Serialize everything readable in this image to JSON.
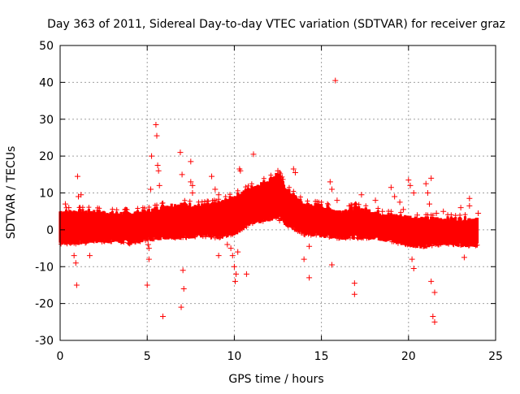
{
  "chart_data": {
    "type": "scatter",
    "title": "Day 363 of 2011, Sidereal Day-to-day VTEC variation (SDTVAR) for receiver graz",
    "xlabel": "GPS time / hours",
    "ylabel": "SDTVAR / TECUs",
    "xlim": [
      0,
      25
    ],
    "ylim": [
      -30,
      50
    ],
    "xticks": [
      0,
      5,
      10,
      15,
      20,
      25
    ],
    "xtick_labels": [
      "0",
      "5",
      "10",
      "15",
      "20",
      "25"
    ],
    "yticks": [
      -30,
      -20,
      -10,
      0,
      10,
      20,
      30,
      40,
      50
    ],
    "ytick_labels": [
      "-30",
      "-20",
      "-10",
      "0",
      "10",
      "20",
      "30",
      "40",
      "50"
    ],
    "grid": true,
    "marker": "+",
    "series": [
      {
        "name": "SDTVAR",
        "color": "#ff0000",
        "band": {
          "description": "dense cloud of measurements: t, center, lower spread, upper spread (TECU)",
          "t": [
            0.0,
            1.0,
            2.0,
            3.0,
            4.0,
            5.0,
            6.0,
            7.0,
            8.0,
            9.0,
            10.0,
            11.0,
            12.0,
            12.5,
            13.0,
            14.0,
            15.0,
            16.0,
            17.0,
            18.0,
            19.0,
            20.0,
            21.0,
            22.0,
            23.0,
            24.0
          ],
          "center": [
            0.5,
            0.5,
            1.0,
            0.5,
            0.5,
            1.0,
            2.0,
            2.5,
            2.0,
            2.5,
            4.0,
            7.0,
            8.5,
            9.0,
            6.5,
            3.0,
            2.5,
            1.5,
            2.0,
            1.5,
            0.5,
            0.0,
            -0.5,
            0.0,
            0.0,
            0.0
          ],
          "lo": [
            -3.5,
            -3.5,
            -3.0,
            -3.0,
            -3.5,
            -2.5,
            -2.0,
            -2.0,
            -1.5,
            -2.0,
            -1.0,
            2.0,
            3.0,
            3.5,
            1.5,
            -1.0,
            -1.5,
            -2.0,
            -2.0,
            -2.0,
            -3.0,
            -4.0,
            -4.5,
            -3.5,
            -4.0,
            -4.0
          ],
          "hi": [
            5.0,
            5.0,
            5.0,
            4.5,
            4.5,
            5.0,
            6.5,
            7.0,
            6.5,
            7.0,
            9.0,
            11.5,
            13.5,
            15.5,
            11.0,
            7.0,
            6.5,
            5.0,
            6.0,
            5.0,
            4.0,
            3.5,
            3.0,
            3.0,
            3.0,
            3.0
          ]
        },
        "points": [
          [
            0.1,
            2
          ],
          [
            0.3,
            7
          ],
          [
            0.5,
            6
          ],
          [
            0.8,
            -7
          ],
          [
            0.9,
            -9
          ],
          [
            0.95,
            -15
          ],
          [
            1.0,
            14.5
          ],
          [
            1.05,
            9
          ],
          [
            1.2,
            9.5
          ],
          [
            1.7,
            -7
          ],
          [
            5.0,
            -15
          ],
          [
            5.05,
            -4
          ],
          [
            5.1,
            -5
          ],
          [
            5.1,
            -8
          ],
          [
            5.2,
            11
          ],
          [
            5.25,
            20
          ],
          [
            5.5,
            28.5
          ],
          [
            5.55,
            25.5
          ],
          [
            5.6,
            17.5
          ],
          [
            5.65,
            16
          ],
          [
            5.7,
            12
          ],
          [
            5.9,
            -23.5
          ],
          [
            6.5,
            5
          ],
          [
            6.9,
            21
          ],
          [
            6.95,
            -21
          ],
          [
            7.0,
            15
          ],
          [
            7.05,
            -11
          ],
          [
            7.1,
            -16
          ],
          [
            7.5,
            18.5
          ],
          [
            7.5,
            13
          ],
          [
            7.6,
            12
          ],
          [
            7.6,
            10
          ],
          [
            8.7,
            14.5
          ],
          [
            8.9,
            11
          ],
          [
            9.1,
            9.5
          ],
          [
            9.1,
            -7
          ],
          [
            9.6,
            -4
          ],
          [
            9.8,
            -5
          ],
          [
            9.9,
            -7
          ],
          [
            10.0,
            -10
          ],
          [
            10.05,
            -14
          ],
          [
            10.1,
            -12
          ],
          [
            10.2,
            -6
          ],
          [
            10.3,
            16.5
          ],
          [
            10.35,
            16
          ],
          [
            10.7,
            -12
          ],
          [
            11.1,
            20.5
          ],
          [
            12.0,
            11
          ],
          [
            12.5,
            16
          ],
          [
            12.6,
            2.5
          ],
          [
            13.4,
            16.5
          ],
          [
            13.5,
            15.5
          ],
          [
            14.0,
            -8
          ],
          [
            14.3,
            -13
          ],
          [
            14.3,
            -4.5
          ],
          [
            15.5,
            13
          ],
          [
            15.6,
            11
          ],
          [
            15.6,
            -9.5
          ],
          [
            15.8,
            40.5
          ],
          [
            15.9,
            8
          ],
          [
            16.6,
            6.5
          ],
          [
            16.9,
            -14.5
          ],
          [
            16.9,
            -17.5
          ],
          [
            17.3,
            9.5
          ],
          [
            18.1,
            8
          ],
          [
            18.5,
            5
          ],
          [
            19.0,
            11.5
          ],
          [
            19.2,
            9
          ],
          [
            19.5,
            7.5
          ],
          [
            19.7,
            5.5
          ],
          [
            20.0,
            13.5
          ],
          [
            20.1,
            12
          ],
          [
            20.1,
            -3.5
          ],
          [
            20.2,
            -8
          ],
          [
            20.3,
            10
          ],
          [
            20.3,
            -10.5
          ],
          [
            20.5,
            4
          ],
          [
            21.0,
            12.5
          ],
          [
            21.1,
            10
          ],
          [
            21.2,
            7
          ],
          [
            21.3,
            14
          ],
          [
            21.3,
            -14
          ],
          [
            21.4,
            -23.5
          ],
          [
            21.5,
            -25
          ],
          [
            21.5,
            -17
          ],
          [
            21.6,
            4.5
          ],
          [
            22.0,
            5
          ],
          [
            22.5,
            2.5
          ],
          [
            23.0,
            6
          ],
          [
            23.2,
            -7.5
          ],
          [
            23.5,
            8.5
          ],
          [
            23.5,
            6.5
          ],
          [
            23.7,
            -3
          ],
          [
            24.0,
            4.5
          ]
        ]
      }
    ]
  }
}
